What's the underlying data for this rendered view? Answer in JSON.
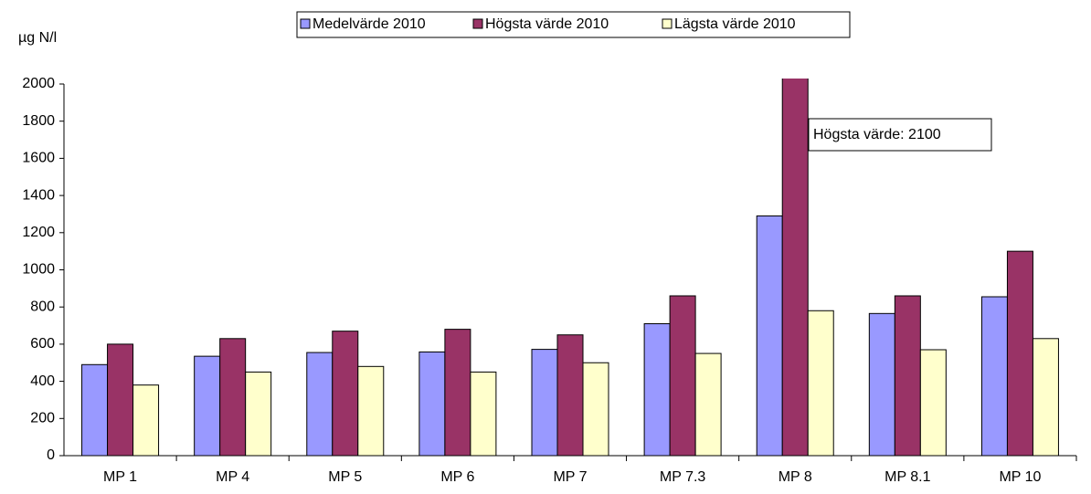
{
  "chart_data": {
    "type": "bar",
    "y_label": "µg N/l",
    "categories": [
      "MP 1",
      "MP 4",
      "MP 5",
      "MP 6",
      "MP 7",
      "MP 7.3",
      "MP 8",
      "MP 8.1",
      "MP 10"
    ],
    "series": [
      {
        "name": "Medelvärde 2010",
        "color": "#9999ff",
        "values": [
          490,
          535,
          555,
          558,
          572,
          710,
          1290,
          765,
          855
        ]
      },
      {
        "name": "Högsta värde 2010",
        "color": "#993366",
        "values": [
          600,
          630,
          670,
          680,
          650,
          860,
          2100,
          860,
          1100
        ]
      },
      {
        "name": "Lägsta värde 2010",
        "color": "#ffffcc",
        "values": [
          380,
          450,
          480,
          450,
          500,
          550,
          780,
          570,
          630
        ]
      }
    ],
    "annotation": "Högsta värde:  2100",
    "ylim": [
      0,
      2000
    ],
    "yticks": [
      0,
      200,
      400,
      600,
      800,
      1000,
      1200,
      1400,
      1600,
      1800,
      2000
    ],
    "grid": false
  }
}
